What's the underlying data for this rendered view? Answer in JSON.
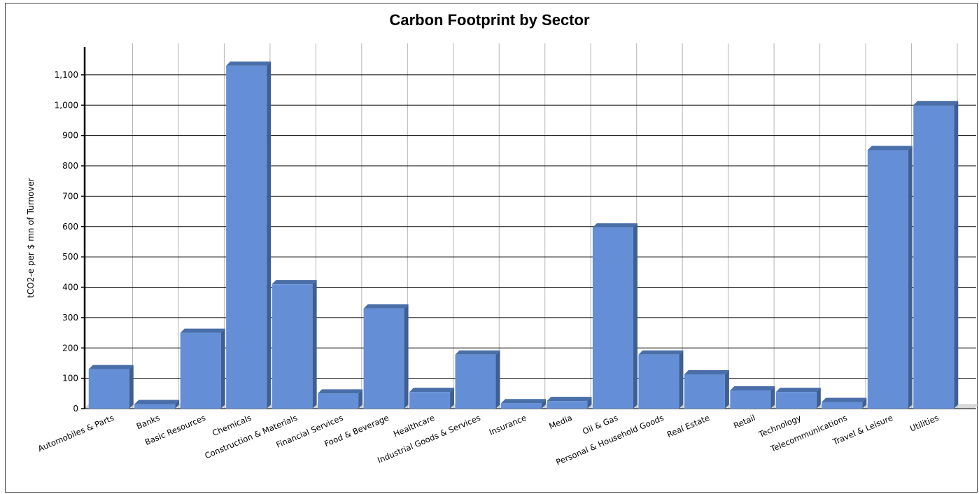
{
  "chart_data": {
    "type": "bar",
    "title": "Carbon Footprint by Sector",
    "ylabel": "tCO2-e per  $ mn of Turnover",
    "xlabel": "",
    "ylim": [
      0,
      1200
    ],
    "yticks": [
      0,
      100,
      200,
      300,
      400,
      500,
      600,
      700,
      800,
      900,
      1000,
      1100
    ],
    "ytick_labels": [
      "0",
      "100",
      "200",
      "300",
      "400",
      "500",
      "600",
      "700",
      "800",
      "900",
      "1,000",
      "1,100"
    ],
    "grid": true,
    "style": "3d-bars",
    "bar_color": "#648fd6",
    "bar_side_color": "#3f5f93",
    "bar_top_color": "#4a6ea8",
    "categories": [
      "Automobiles & Parts",
      "Banks",
      "Basic Resources",
      "Chemicals",
      "Construction & Materials",
      "Financial Services",
      "Food & Beverage",
      "Healthcare",
      "Industrial Goods & Services",
      "Insurance",
      "Media",
      "Oil & Gas",
      "Personal & Household Goods",
      "Real Estate",
      "Retail",
      "Technology",
      "Telecommunications",
      "Travel & Leisure",
      "Utilities"
    ],
    "values": [
      130,
      15,
      250,
      1130,
      410,
      50,
      330,
      55,
      178,
      18,
      25,
      597,
      178,
      113,
      60,
      55,
      22,
      852,
      1000
    ]
  }
}
